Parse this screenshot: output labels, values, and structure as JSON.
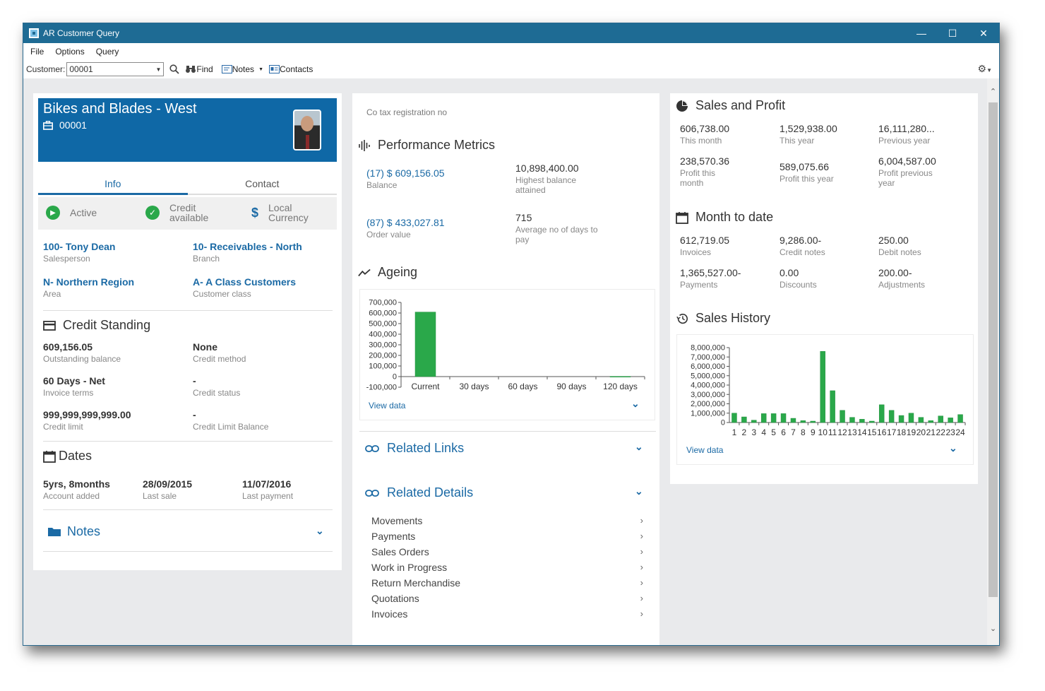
{
  "window": {
    "title": "AR Customer Query",
    "minimize": "—",
    "maximize": "☐",
    "close": "✕"
  },
  "menu": {
    "file": "File",
    "options": "Options",
    "query": "Query"
  },
  "toolbar": {
    "customer_label": "Customer:",
    "customer_value": "00001",
    "find": "Find",
    "notes": "Notes",
    "contacts": "Contacts"
  },
  "customer": {
    "name": "Bikes and Blades - West",
    "id": "00001",
    "tabs": [
      "Info",
      "Contact"
    ],
    "status": {
      "active": "Active",
      "credit_line1": "Credit",
      "credit_line2": "available",
      "currency_line1": "Local",
      "currency_line2": "Currency"
    },
    "salesperson": {
      "value": "100- Tony Dean",
      "label": "Salesperson"
    },
    "branch": {
      "value": "10- Receivables - North",
      "label": "Branch"
    },
    "area": {
      "value": "N- Northern Region",
      "label": "Area"
    },
    "customer_class": {
      "value": "A- A Class Customers",
      "label": "Customer class"
    }
  },
  "credit": {
    "title": "Credit Standing",
    "outstanding": {
      "value": "609,156.05",
      "label": "Outstanding balance"
    },
    "method": {
      "value": "None",
      "label": "Credit method"
    },
    "terms": {
      "value": "60 Days - Net",
      "label": "Invoice terms"
    },
    "status": {
      "value": "-",
      "label": "Credit status"
    },
    "limit": {
      "value": "999,999,999,999.00",
      "label": "Credit limit"
    },
    "limit_balance": {
      "value": "-",
      "label": "Credit Limit Balance"
    }
  },
  "dates": {
    "title": "Dates",
    "added": {
      "value": "5yrs, 8months",
      "label": "Account added"
    },
    "last_sale": {
      "value": "28/09/2015",
      "label": "Last sale"
    },
    "last_payment": {
      "value": "11/07/2016",
      "label": "Last payment"
    }
  },
  "notes": {
    "title": "Notes"
  },
  "middle": {
    "tax_reg": "Co tax registration no",
    "perf_title": "Performance Metrics",
    "balance": {
      "value": "(17) $ 609,156.05",
      "label": "Balance"
    },
    "highest": {
      "value": "10,898,400.00",
      "label_l1": "Highest balance",
      "label_l2": "attained"
    },
    "order": {
      "value": "(87) $ 433,027.81",
      "label": "Order value"
    },
    "avg_days": {
      "value": "715",
      "label_l1": "Average no of days to",
      "label_l2": "pay"
    },
    "ageing_title": "Ageing",
    "view_data": "View data",
    "related_links": "Related Links",
    "related_details": "Related Details",
    "details": [
      "Movements",
      "Payments",
      "Sales Orders",
      "Work in Progress",
      "Return Merchandise",
      "Quotations",
      "Invoices"
    ]
  },
  "right": {
    "sp_title": "Sales and Profit",
    "sp": [
      {
        "value": "606,738.00",
        "l1": "This month",
        "l2": ""
      },
      {
        "value": "1,529,938.00",
        "l1": "This year",
        "l2": ""
      },
      {
        "value": "16,111,280...",
        "l1": "Previous year",
        "l2": ""
      },
      {
        "value": "238,570.36",
        "l1": "Profit this",
        "l2": "month"
      },
      {
        "value": "589,075.66",
        "l1": "Profit this year",
        "l2": ""
      },
      {
        "value": "6,004,587.00",
        "l1": "Profit previous",
        "l2": "year"
      }
    ],
    "mtd_title": "Month to date",
    "mtd": [
      {
        "value": "612,719.05",
        "label": "Invoices"
      },
      {
        "value": "9,286.00-",
        "label": "Credit notes"
      },
      {
        "value": "250.00",
        "label": "Debit notes"
      },
      {
        "value": "1,365,527.00-",
        "label": "Payments"
      },
      {
        "value": "0.00",
        "label": "Discounts"
      },
      {
        "value": "200.00-",
        "label": "Adjustments"
      }
    ],
    "history_title": "Sales History",
    "view_data": "View data"
  },
  "chart_data": [
    {
      "type": "bar",
      "title": "Ageing",
      "categories": [
        "Current",
        "30 days",
        "60 days",
        "90 days",
        "120 days"
      ],
      "values": [
        609000,
        0,
        0,
        0,
        2000
      ],
      "ylim": [
        -100000,
        700000
      ],
      "yticks": [
        "700,000",
        "600,000",
        "500,000",
        "400,000",
        "300,000",
        "200,000",
        "100,000",
        "0",
        "-100,000"
      ],
      "color": "#2aa84a"
    },
    {
      "type": "bar",
      "title": "Sales History",
      "categories": [
        "1",
        "2",
        "3",
        "4",
        "5",
        "6",
        "7",
        "8",
        "9",
        "10",
        "11",
        "12",
        "13",
        "14",
        "15",
        "16",
        "17",
        "18",
        "19",
        "20",
        "21",
        "22",
        "23",
        "24"
      ],
      "values": [
        1000000,
        600000,
        250000,
        950000,
        950000,
        950000,
        450000,
        200000,
        150000,
        7600000,
        3400000,
        1300000,
        550000,
        350000,
        150000,
        1900000,
        1300000,
        750000,
        1000000,
        550000,
        200000,
        700000,
        500000,
        850000
      ],
      "ylim": [
        0,
        8000000
      ],
      "yticks": [
        "8,000,000",
        "7,000,000",
        "6,000,000",
        "5,000,000",
        "4,000,000",
        "3,000,000",
        "2,000,000",
        "1,000,000",
        "0"
      ],
      "color": "#2aa84a"
    }
  ]
}
